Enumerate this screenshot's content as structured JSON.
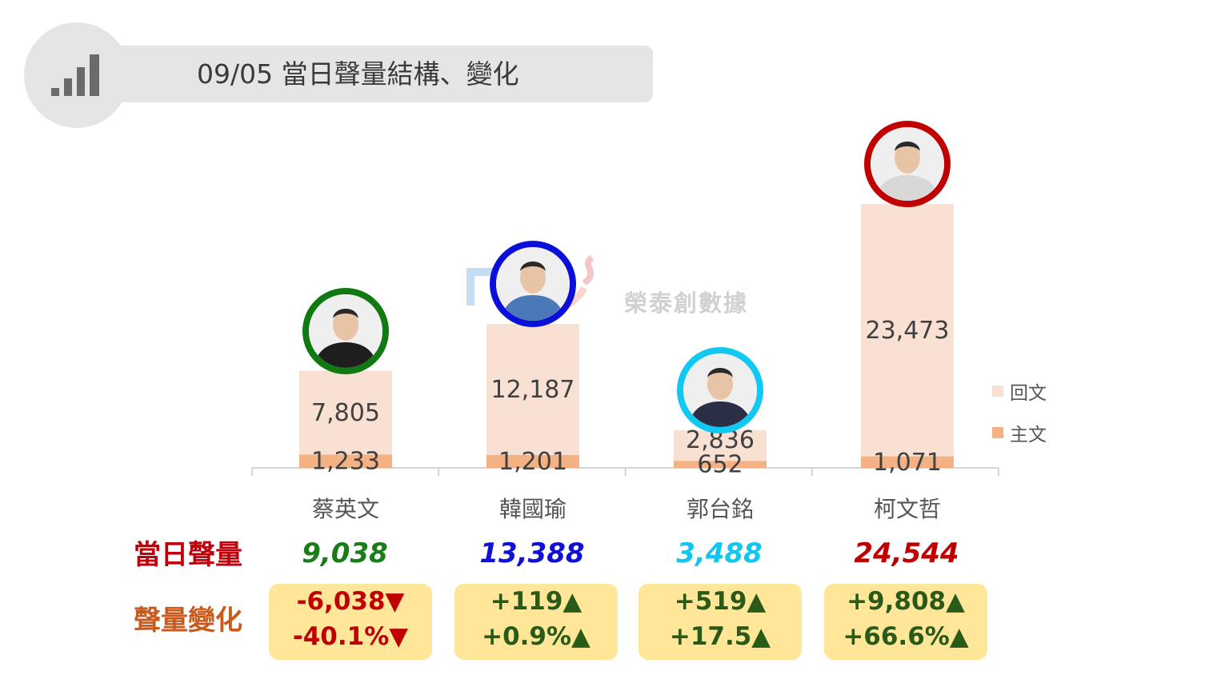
{
  "header": {
    "title": "09/05 當日聲量結構、變化",
    "icon": "signal-bars-icon"
  },
  "watermark": {
    "text": "榮泰創數據"
  },
  "legend": [
    {
      "label": "回文",
      "color": "#f8e0d2"
    },
    {
      "label": "主文",
      "color": "#f4b183"
    }
  ],
  "chart_data": {
    "type": "bar",
    "stacked": true,
    "categories": [
      "蔡英文",
      "韓國瑜",
      "郭台銘",
      "柯文哲"
    ],
    "series": [
      {
        "name": "主文",
        "values": [
          1233,
          1201,
          652,
          1071
        ],
        "color": "#f4b183"
      },
      {
        "name": "回文",
        "values": [
          7805,
          12187,
          2836,
          23473
        ],
        "color": "#f8e0d2"
      }
    ],
    "value_labels": {
      "主文": [
        "1,233",
        "1,201",
        "652",
        "1,071"
      ],
      "回文": [
        "7,805",
        "12,187",
        "2,836",
        "23,473"
      ]
    },
    "ylim": [
      0,
      25000
    ],
    "legend_position": "right",
    "grid": false
  },
  "rows": {
    "volume_label": "當日聲量",
    "change_label": "聲量變化"
  },
  "candidates": [
    {
      "name": "蔡英文",
      "ring_color": "#0f7a12",
      "volume": "9,038",
      "volume_color": "#1a7d1a",
      "change_abs": "-6,038▼",
      "change_pct": "-40.1%▼",
      "change_color": "#c00000"
    },
    {
      "name": "韓國瑜",
      "ring_color": "#0a10d8",
      "volume": "13,388",
      "volume_color": "#1010d8",
      "change_abs": "+119▲",
      "change_pct": "+0.9%▲",
      "change_color": "#2a5a18"
    },
    {
      "name": "郭台銘",
      "ring_color": "#10c8f0",
      "volume": "3,488",
      "volume_color": "#12c6f0",
      "change_abs": "+519▲",
      "change_pct": "+17.5▲",
      "change_color": "#2a5a18"
    },
    {
      "name": "柯文哲",
      "ring_color": "#c00000",
      "volume": "24,544",
      "volume_color": "#c00000",
      "change_abs": "+9,808▲",
      "change_pct": "+66.6%▲",
      "change_color": "#2a5a18"
    }
  ]
}
